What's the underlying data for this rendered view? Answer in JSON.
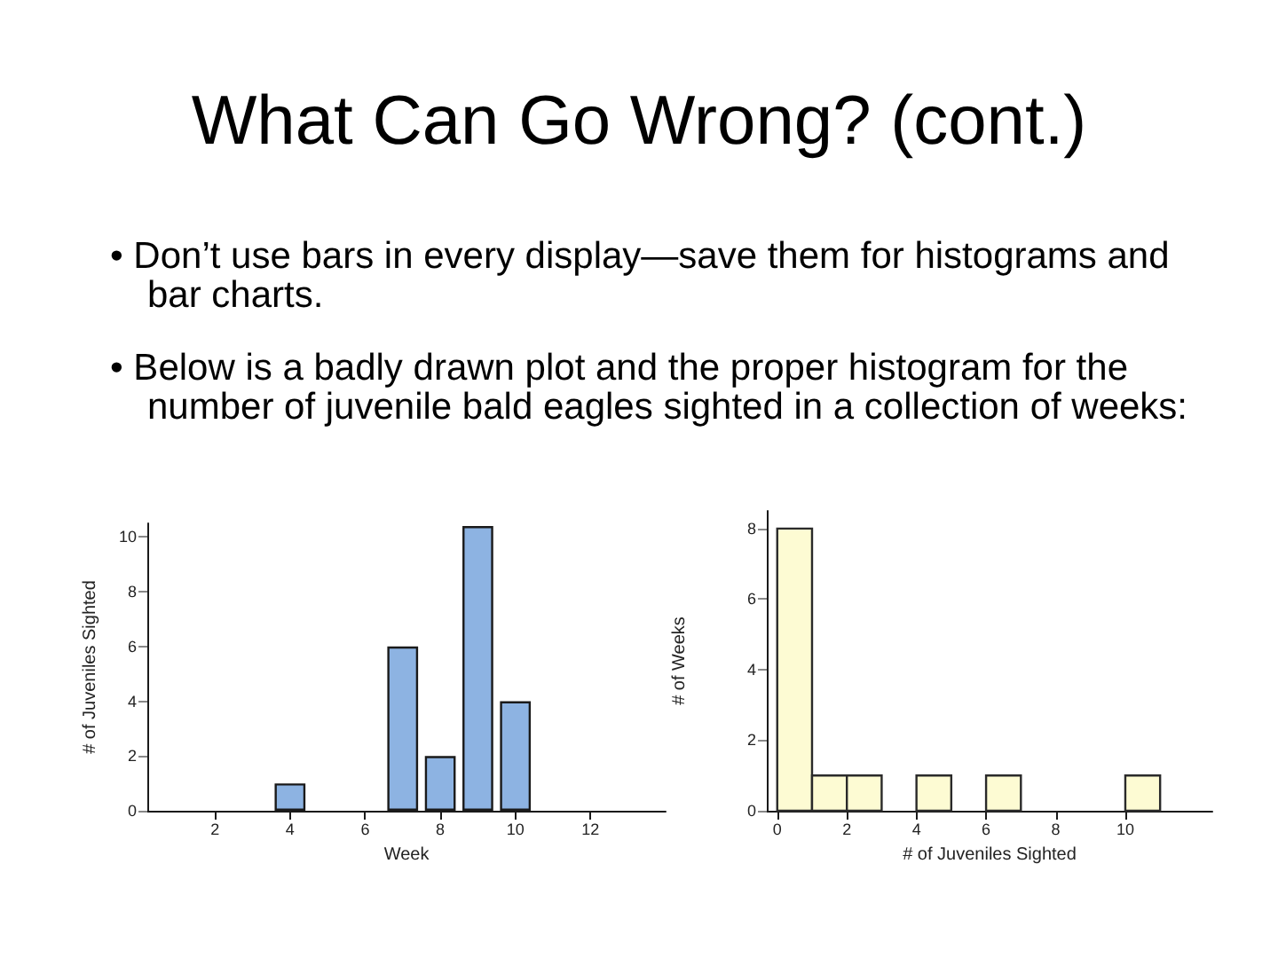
{
  "chart_data": [
    {
      "type": "other",
      "title": "What Can Go Wrong? (cont.)",
      "annotations": [
        "• Don’t use bars in every display—save them for histograms and bar charts.",
        "• Below is a badly drawn plot and the proper histogram for the number of juvenile bald eagles sighted in a collection of weeks:"
      ]
    },
    {
      "type": "bar",
      "x": [
        4,
        7,
        8,
        9,
        10
      ],
      "values": [
        1,
        6,
        2,
        10.4,
        4
      ],
      "color": "#8db3e2",
      "xlabel": "Week",
      "ylabel": "# of Juveniles Sighted",
      "xlim": [
        0.2,
        14
      ],
      "xticks": [
        2,
        4,
        6,
        8,
        10,
        12
      ],
      "ylim": [
        0,
        10.5
      ],
      "yticks": [
        0,
        2,
        4,
        6,
        8,
        10
      ]
    },
    {
      "type": "histogram",
      "bins": [
        0,
        1,
        2,
        3,
        4,
        5,
        6,
        7,
        8,
        9,
        10,
        11
      ],
      "values": [
        8,
        1,
        1,
        0,
        1,
        0,
        1,
        0,
        0,
        0,
        1
      ],
      "color": "#fdfbd3",
      "xlabel": "# of Juveniles Sighted",
      "ylabel": "# of Weeks",
      "xlim": [
        -0.3,
        12.5
      ],
      "xticks": [
        0,
        2,
        4,
        6,
        8,
        10
      ],
      "ylim": [
        0,
        8.5
      ],
      "yticks": [
        0,
        2,
        4,
        6,
        8
      ]
    }
  ]
}
